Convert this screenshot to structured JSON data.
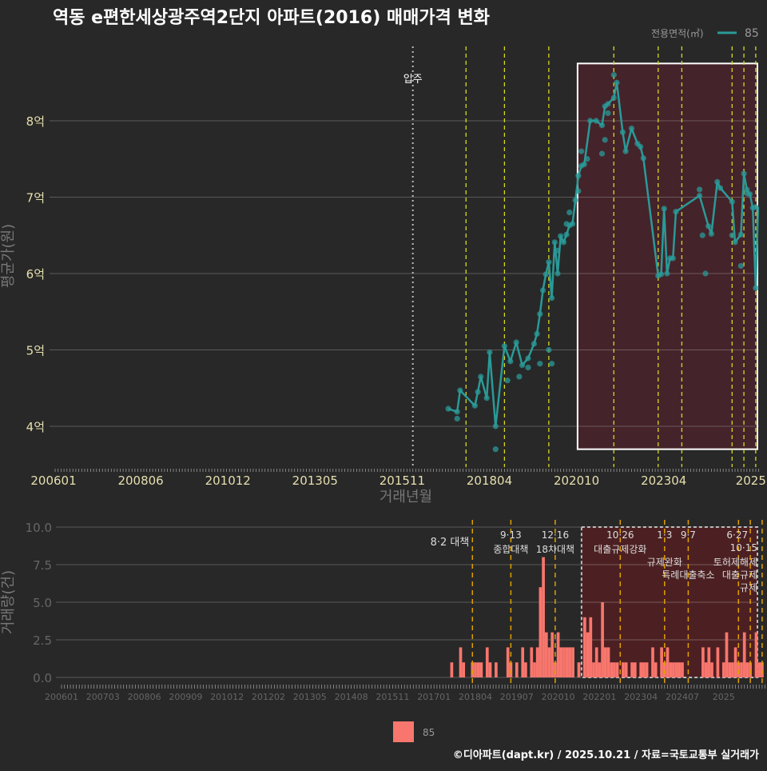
{
  "title": "역동 e편한세상광주역2단지 아파트(2016) 매매가격 변화",
  "legend_top": {
    "title": "전용면적(㎡)",
    "label": "85",
    "color": "#2a9a98"
  },
  "legend_bottom": {
    "label": "85",
    "color": "#f8766d"
  },
  "footer": "©디아파트(dapt.kr) / 2025.10.21 / 자료=국토교통부 실거래가",
  "move_in": {
    "ym": "201602",
    "label": "입주"
  },
  "chart_data": [
    {
      "type": "line",
      "title": "역동 e편한세상광주역2단지 아파트(2016) 매매가격 변화",
      "xlabel": "거래년월",
      "ylabel": "평균가(원)",
      "x_ticks": [
        "200601",
        "200806",
        "201012",
        "201305",
        "201511",
        "201804",
        "202010",
        "202304",
        "2025"
      ],
      "y_ticks": [
        {
          "v": 4,
          "label": "4억"
        },
        {
          "v": 5,
          "label": "5억"
        },
        {
          "v": 6,
          "label": "6억"
        },
        {
          "v": 7,
          "label": "7억"
        },
        {
          "v": 8,
          "label": "8억"
        }
      ],
      "ylim": [
        3.46,
        9.0
      ],
      "grid": true,
      "legend": "top-right",
      "highlight": {
        "from": "202010",
        "to": "202510",
        "y": [
          3.7,
          8.75
        ]
      },
      "series": [
        {
          "name": "85",
          "points": [
            [
              "201702",
              4.23
            ],
            [
              "201705",
              4.19
            ],
            [
              "201706",
              4.47
            ],
            [
              "201711",
              4.27
            ],
            [
              "201712",
              4.45
            ],
            [
              "201801",
              4.65
            ],
            [
              "201803",
              4.37
            ],
            [
              "201804",
              4.97
            ],
            [
              "201806",
              4.0
            ],
            [
              "201809",
              5.05
            ],
            [
              "201811",
              4.85
            ],
            [
              "201901",
              5.1
            ],
            [
              "201903",
              4.8
            ],
            [
              "201905",
              4.89
            ],
            [
              "201907",
              5.08
            ],
            [
              "201908",
              5.21
            ],
            [
              "201909",
              5.47
            ],
            [
              "201910",
              5.78
            ],
            [
              "201911",
              5.99
            ],
            [
              "201912",
              6.15
            ],
            [
              "202001",
              5.68
            ],
            [
              "202002",
              6.41
            ],
            [
              "202003",
              6.0
            ],
            [
              "202004",
              6.49
            ],
            [
              "202005",
              6.41
            ],
            [
              "202006",
              6.51
            ],
            [
              "202007",
              6.63
            ],
            [
              "202008",
              6.65
            ],
            [
              "202009",
              6.96
            ],
            [
              "202010",
              7.28
            ],
            [
              "202011",
              7.41
            ],
            [
              "202012",
              7.43
            ],
            [
              "202102",
              8.0
            ],
            [
              "202104",
              8.0
            ],
            [
              "202106",
              7.94
            ],
            [
              "202107",
              8.19
            ],
            [
              "202108",
              8.22
            ],
            [
              "202110",
              8.3
            ],
            [
              "202111",
              8.5
            ],
            [
              "202201",
              7.85
            ],
            [
              "202202",
              7.6
            ],
            [
              "202204",
              7.9
            ],
            [
              "202206",
              7.7
            ],
            [
              "202207",
              7.66
            ],
            [
              "202208",
              7.51
            ],
            [
              "202301",
              5.97
            ],
            [
              "202302",
              5.99
            ],
            [
              "202303",
              6.85
            ],
            [
              "202304",
              6.0
            ],
            [
              "202305",
              6.2
            ],
            [
              "202306",
              6.2
            ],
            [
              "202307",
              6.81
            ],
            [
              "202403",
              7.02
            ],
            [
              "202406",
              6.62
            ],
            [
              "202407",
              6.52
            ],
            [
              "202409",
              7.2
            ],
            [
              "202410",
              7.12
            ],
            [
              "202502",
              6.94
            ],
            [
              "202503",
              6.41
            ],
            [
              "202505",
              6.51
            ],
            [
              "202506",
              7.31
            ],
            [
              "202507",
              7.1
            ],
            [
              "202508",
              7.04
            ],
            [
              "202509",
              6.86
            ],
            [
              "202510",
              5.81
            ],
            [
              "202510",
              6.87
            ]
          ],
          "scatter": [
            [
              "201705",
              4.1
            ],
            [
              "201806",
              3.7
            ],
            [
              "201810",
              4.6
            ],
            [
              "201902",
              4.65
            ],
            [
              "201905",
              4.77
            ],
            [
              "201909",
              4.82
            ],
            [
              "201912",
              5.0
            ],
            [
              "202001",
              4.82
            ],
            [
              "202003",
              6.3
            ],
            [
              "202006",
              6.65
            ],
            [
              "202007",
              6.8
            ],
            [
              "202010",
              7.08
            ],
            [
              "202011",
              7.6
            ],
            [
              "202101",
              7.5
            ],
            [
              "202106",
              7.57
            ],
            [
              "202107",
              7.75
            ],
            [
              "202108",
              8.1
            ],
            [
              "202110",
              8.6
            ],
            [
              "202403",
              7.1
            ],
            [
              "202404",
              6.5
            ],
            [
              "202405",
              6.0
            ],
            [
              "202502",
              6.5
            ],
            [
              "202505",
              6.1
            ],
            [
              "202507",
              7.05
            ]
          ]
        }
      ]
    },
    {
      "type": "bar",
      "ylabel": "거래량(건)",
      "ylim": [
        0,
        10
      ],
      "y_ticks": [
        "0.0",
        "2.5",
        "5.0",
        "7.5",
        "10.0"
      ],
      "x_ticks": [
        "200601",
        "200703",
        "200806",
        "200909",
        "201012",
        "201202",
        "201305",
        "201408",
        "201511",
        "201701",
        "201804",
        "201907",
        "202010",
        "202201",
        "202304",
        "202407",
        "2025"
      ],
      "start": "201701",
      "values": [
        1,
        0,
        0,
        2,
        1,
        0,
        0,
        1,
        1,
        1,
        1,
        0,
        2,
        1,
        0,
        1,
        0,
        0,
        0,
        2,
        1,
        0,
        1,
        0,
        2,
        1,
        0,
        2,
        1,
        2,
        6,
        8,
        3,
        2,
        3,
        1,
        3,
        2,
        2,
        2,
        2,
        2,
        0,
        1,
        0,
        4,
        3,
        4,
        1,
        2,
        1,
        5,
        2,
        2,
        1,
        1,
        1,
        0,
        1,
        1,
        0,
        1,
        1,
        0,
        1,
        1,
        1,
        0,
        2,
        1,
        0,
        2,
        1,
        2,
        1,
        1,
        1,
        1,
        1,
        0,
        0,
        0,
        0,
        0,
        0,
        2,
        1,
        2,
        1,
        0,
        2,
        0,
        1,
        3,
        1,
        1,
        2,
        1,
        1,
        3,
        1,
        1,
        0,
        3,
        1,
        1
      ],
      "highlight": {
        "from": "202010",
        "to": "202510"
      }
    }
  ],
  "events": [
    {
      "ym": "201708",
      "num": "8·2",
      "text": "대책"
    },
    {
      "ym": "201809",
      "num": "9·13",
      "text": "종합대책"
    },
    {
      "ym": "201912",
      "num": "12·16",
      "text": "18차대책"
    },
    {
      "ym": "202110",
      "num": "10·26",
      "text": "대출규제강화"
    },
    {
      "ym": "202301",
      "num": "1·3",
      "text": "규제완화"
    },
    {
      "ym": "202309",
      "num": "9·7",
      "text": "특례대출축소"
    },
    {
      "ym": "202502",
      "num": "",
      "text": "토허제해제"
    },
    {
      "ym": "202506",
      "num": "6·27",
      "text": "대출규제"
    },
    {
      "ym": "202510",
      "num": "10·15",
      "text": "규제"
    }
  ]
}
